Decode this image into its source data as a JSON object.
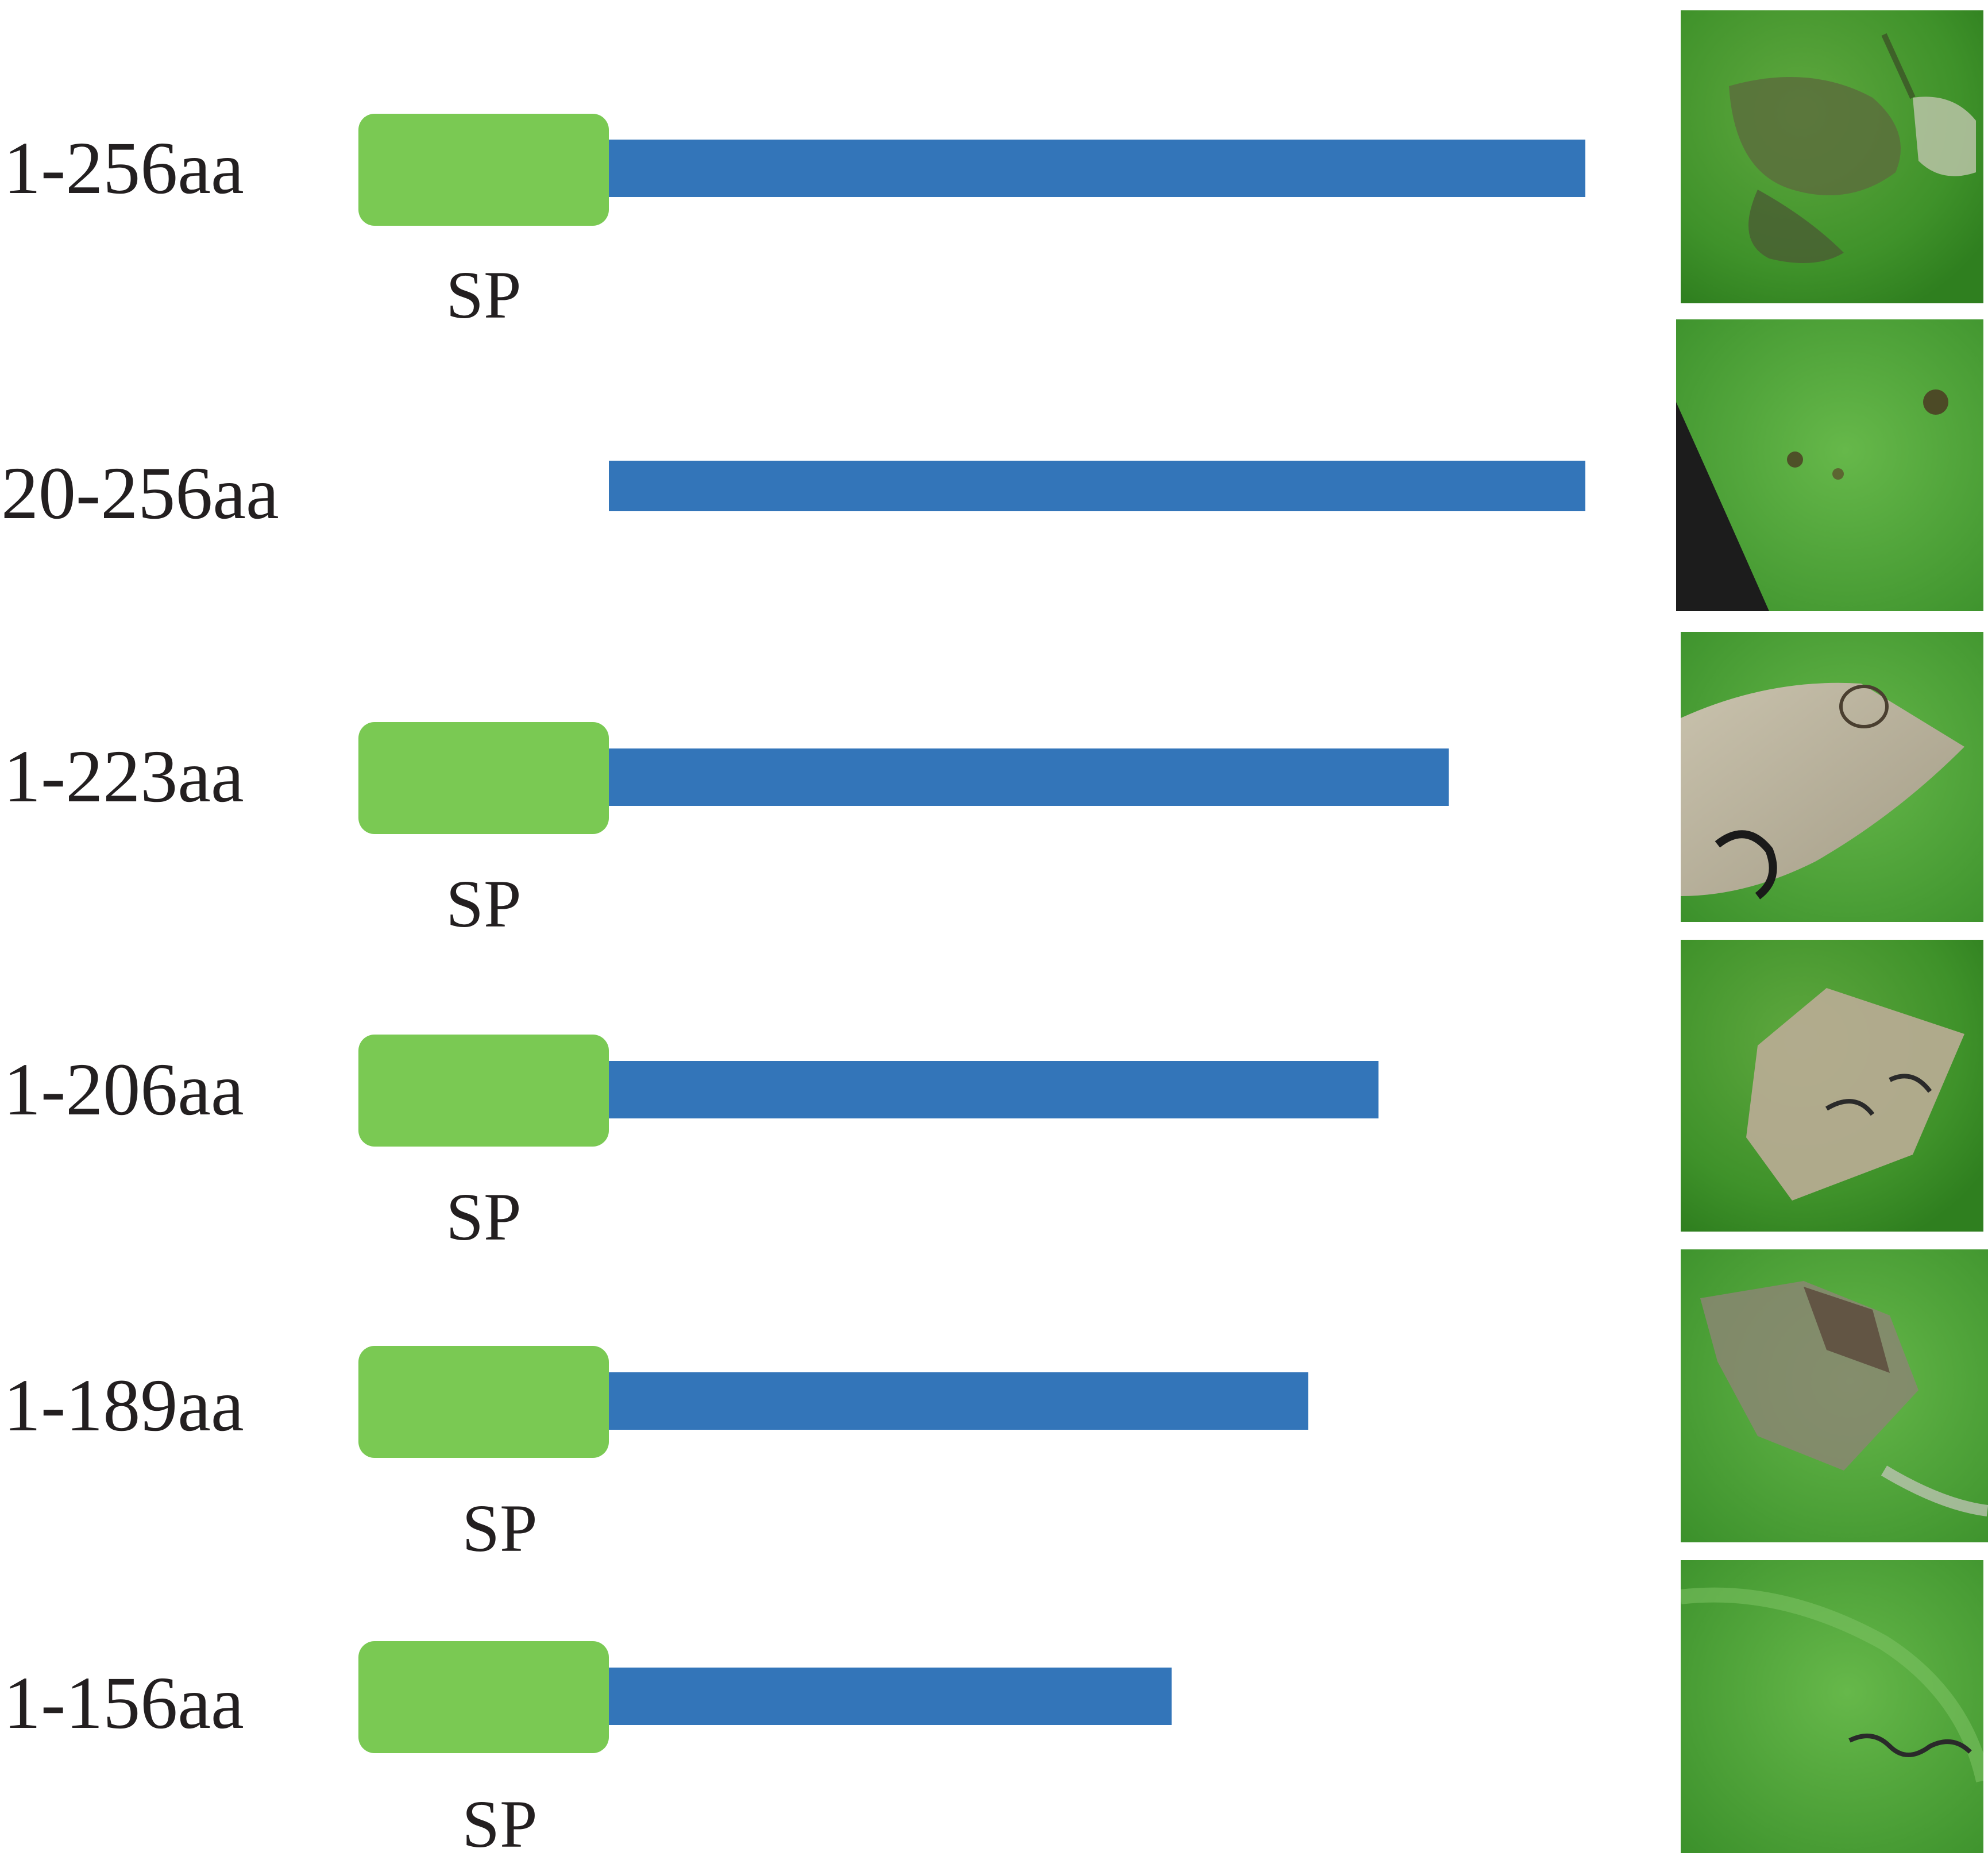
{
  "diagram": {
    "domain_color": "#7ac953",
    "protein_color": "#3375b9",
    "domain_label": "SP",
    "full_length": 256,
    "constructs": [
      {
        "label": "1-256aa",
        "start": 1,
        "end": 256,
        "has_sp": true,
        "leaf_photo": "leaf-lesion-photo",
        "photo_tint": "#4f8b36"
      },
      {
        "label": "20-256aa",
        "start": 20,
        "end": 256,
        "has_sp": false,
        "leaf_photo": "leaf-healthy-photo",
        "photo_tint": "#3f9c2e"
      },
      {
        "label": "1-223aa",
        "start": 1,
        "end": 223,
        "has_sp": true,
        "leaf_photo": "leaf-necrosis-photo",
        "photo_tint": "#8f9079"
      },
      {
        "label": "1-206aa",
        "start": 1,
        "end": 206,
        "has_sp": true,
        "leaf_photo": "leaf-necrosis-photo",
        "photo_tint": "#7a9a62"
      },
      {
        "label": "1-189aa",
        "start": 1,
        "end": 189,
        "has_sp": true,
        "leaf_photo": "leaf-necrosis-photo",
        "photo_tint": "#6e9654"
      },
      {
        "label": "1-156aa",
        "start": 1,
        "end": 156,
        "has_sp": true,
        "leaf_photo": "leaf-lesion-photo",
        "photo_tint": "#4f9a35"
      }
    ]
  }
}
